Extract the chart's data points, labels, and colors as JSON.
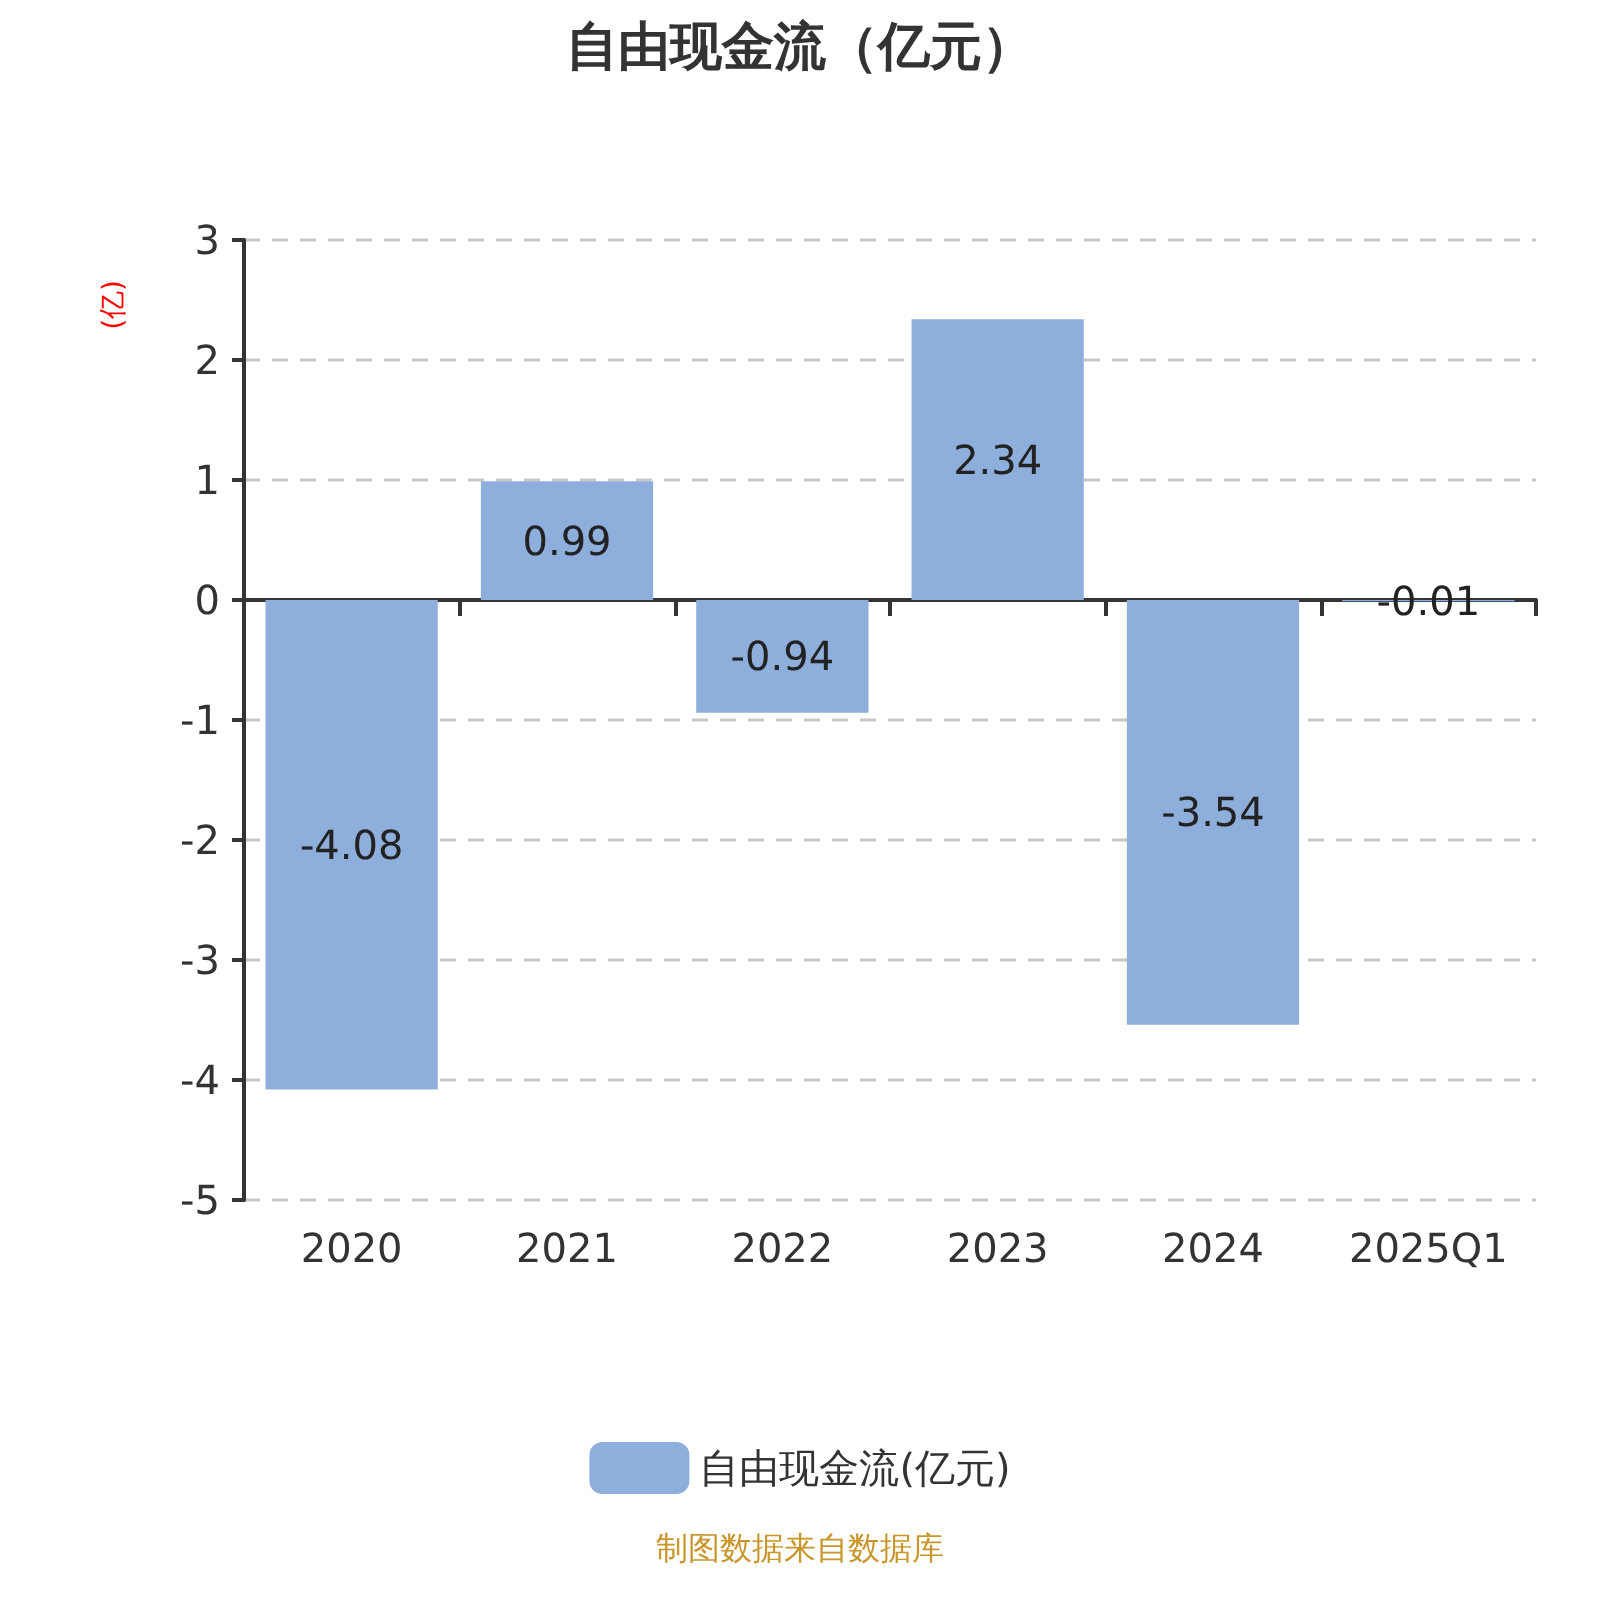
{
  "chart_data": {
    "type": "bar",
    "title": "自由现金流（亿元）",
    "ylabel": "(亿)",
    "categories": [
      "2020",
      "2021",
      "2022",
      "2023",
      "2024",
      "2025Q1"
    ],
    "series": [
      {
        "name": "自由现金流(亿元)",
        "color": "#8eaedb",
        "values": [
          -4.08,
          0.99,
          -0.94,
          2.34,
          -3.54,
          -0.01
        ]
      }
    ],
    "ylim": [
      -5,
      3
    ],
    "yticks": [
      -5,
      -4,
      -3,
      -2,
      -1,
      0,
      1,
      2,
      3
    ],
    "grid": "y",
    "legend": "bottom",
    "data_labels": true,
    "annotations": [
      "制图数据来自数据库"
    ]
  }
}
